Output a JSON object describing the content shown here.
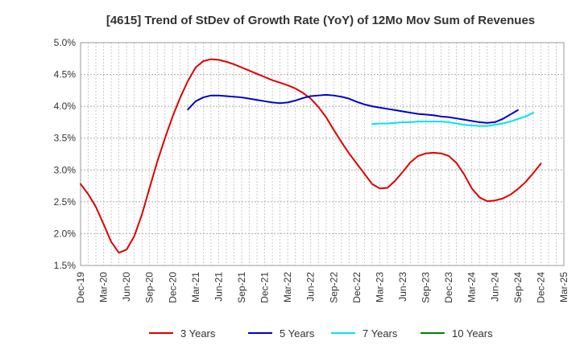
{
  "chart_data": {
    "type": "line",
    "title": "[4615]  Trend of StDev of Growth Rate (YoY) of 12Mo Mov Sum of Revenues",
    "xlabel": "",
    "ylabel": "",
    "ylim": [
      1.5,
      5.0
    ],
    "y_ticks": [
      1.5,
      2.0,
      2.5,
      3.0,
      3.5,
      4.0,
      4.5,
      5.0
    ],
    "y_tick_labels": [
      "1.5%",
      "2.0%",
      "2.5%",
      "3.0%",
      "3.5%",
      "4.0%",
      "4.5%",
      "5.0%"
    ],
    "x_tick_labels": [
      "Dec-19",
      "Mar-20",
      "Jun-20",
      "Sep-20",
      "Dec-20",
      "Mar-21",
      "Jun-21",
      "Sep-21",
      "Dec-21",
      "Mar-22",
      "Jun-22",
      "Sep-22",
      "Dec-22",
      "Mar-23",
      "Jun-23",
      "Sep-23",
      "Dec-23",
      "Mar-24",
      "Jun-24",
      "Sep-24",
      "Dec-24",
      "Mar-25"
    ],
    "grid": true,
    "legend_position": "bottom",
    "series": [
      {
        "name": "3 Years",
        "color": "#dd0000",
        "start_index": 0,
        "values": [
          2.78,
          2.62,
          2.42,
          2.15,
          1.87,
          1.7,
          1.75,
          1.96,
          2.3,
          2.72,
          3.13,
          3.5,
          3.84,
          4.14,
          4.4,
          4.61,
          4.71,
          4.74,
          4.73,
          4.7,
          4.66,
          4.61,
          4.56,
          4.51,
          4.46,
          4.41,
          4.37,
          4.33,
          4.28,
          4.21,
          4.12,
          3.99,
          3.83,
          3.63,
          3.44,
          3.26,
          3.1,
          2.94,
          2.78,
          2.71,
          2.72,
          2.83,
          2.97,
          3.12,
          3.22,
          3.26,
          3.27,
          3.26,
          3.22,
          3.11,
          2.93,
          2.71,
          2.57,
          2.51,
          2.52,
          2.55,
          2.61,
          2.7,
          2.81,
          2.95,
          3.1
        ]
      },
      {
        "name": "5 Years",
        "color": "#0000cc",
        "start_index": 14,
        "values": [
          3.95,
          4.08,
          4.14,
          4.17,
          4.17,
          4.16,
          4.15,
          4.14,
          4.12,
          4.1,
          4.08,
          4.06,
          4.05,
          4.06,
          4.09,
          4.13,
          4.16,
          4.17,
          4.18,
          4.17,
          4.15,
          4.12,
          4.07,
          4.03,
          4.0,
          3.98,
          3.96,
          3.94,
          3.92,
          3.9,
          3.88,
          3.87,
          3.86,
          3.84,
          3.83,
          3.81,
          3.79,
          3.77,
          3.75,
          3.74,
          3.75,
          3.8,
          3.87,
          3.94
        ]
      },
      {
        "name": "7 Years",
        "color": "#00e5ee",
        "start_index": 38,
        "values": [
          3.72,
          3.73,
          3.73,
          3.74,
          3.75,
          3.75,
          3.76,
          3.76,
          3.76,
          3.76,
          3.75,
          3.73,
          3.71,
          3.7,
          3.69,
          3.69,
          3.71,
          3.73,
          3.76,
          3.8,
          3.84,
          3.9
        ]
      },
      {
        "name": "10 Years",
        "color": "#008000",
        "start_index": 0,
        "values": []
      }
    ]
  }
}
